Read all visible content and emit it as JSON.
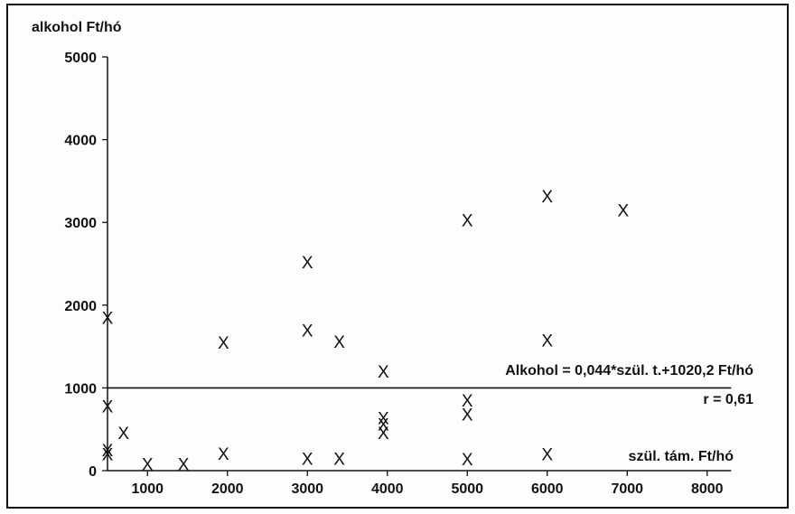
{
  "chart_data": {
    "type": "scatter",
    "ylabel": "alkohol Ft/hó",
    "xlabel": "szül. tám. Ft/hó",
    "xlim": [
      500,
      8300
    ],
    "ylim": [
      0,
      5000
    ],
    "x_ticks": [
      1000,
      2000,
      3000,
      4000,
      5000,
      6000,
      7000,
      8000
    ],
    "y_ticks": [
      0,
      1000,
      2000,
      3000,
      4000,
      5000
    ],
    "x_tick_labels": [
      "1000",
      "2000",
      "3000",
      "4000",
      "5000",
      "6000",
      "7000",
      "8000"
    ],
    "y_tick_labels": [
      "0",
      "1000",
      "2000",
      "3000",
      "4000",
      "5000"
    ],
    "marker": "X",
    "points": [
      {
        "x": 500,
        "y": 1850
      },
      {
        "x": 500,
        "y": 780
      },
      {
        "x": 500,
        "y": 250
      },
      {
        "x": 500,
        "y": 200
      },
      {
        "x": 700,
        "y": 460
      },
      {
        "x": 1000,
        "y": 80
      },
      {
        "x": 1450,
        "y": 80
      },
      {
        "x": 1950,
        "y": 210
      },
      {
        "x": 1950,
        "y": 1550
      },
      {
        "x": 3000,
        "y": 150
      },
      {
        "x": 3000,
        "y": 1700
      },
      {
        "x": 3000,
        "y": 2520
      },
      {
        "x": 3400,
        "y": 150
      },
      {
        "x": 3400,
        "y": 1560
      },
      {
        "x": 3950,
        "y": 460
      },
      {
        "x": 3950,
        "y": 560
      },
      {
        "x": 3950,
        "y": 640
      },
      {
        "x": 3950,
        "y": 1200
      },
      {
        "x": 5000,
        "y": 140
      },
      {
        "x": 5000,
        "y": 680
      },
      {
        "x": 5000,
        "y": 850
      },
      {
        "x": 5000,
        "y": 3030
      },
      {
        "x": 6000,
        "y": 200
      },
      {
        "x": 6000,
        "y": 1580
      },
      {
        "x": 6000,
        "y": 3320
      },
      {
        "x": 6950,
        "y": 3150
      }
    ],
    "regression": {
      "y_value": 1000,
      "equation": "Alkohol = 0,044*szül. t.+1020,2 Ft/hó",
      "r_label": "r = 0,61"
    },
    "grid": false,
    "legend": "none"
  }
}
